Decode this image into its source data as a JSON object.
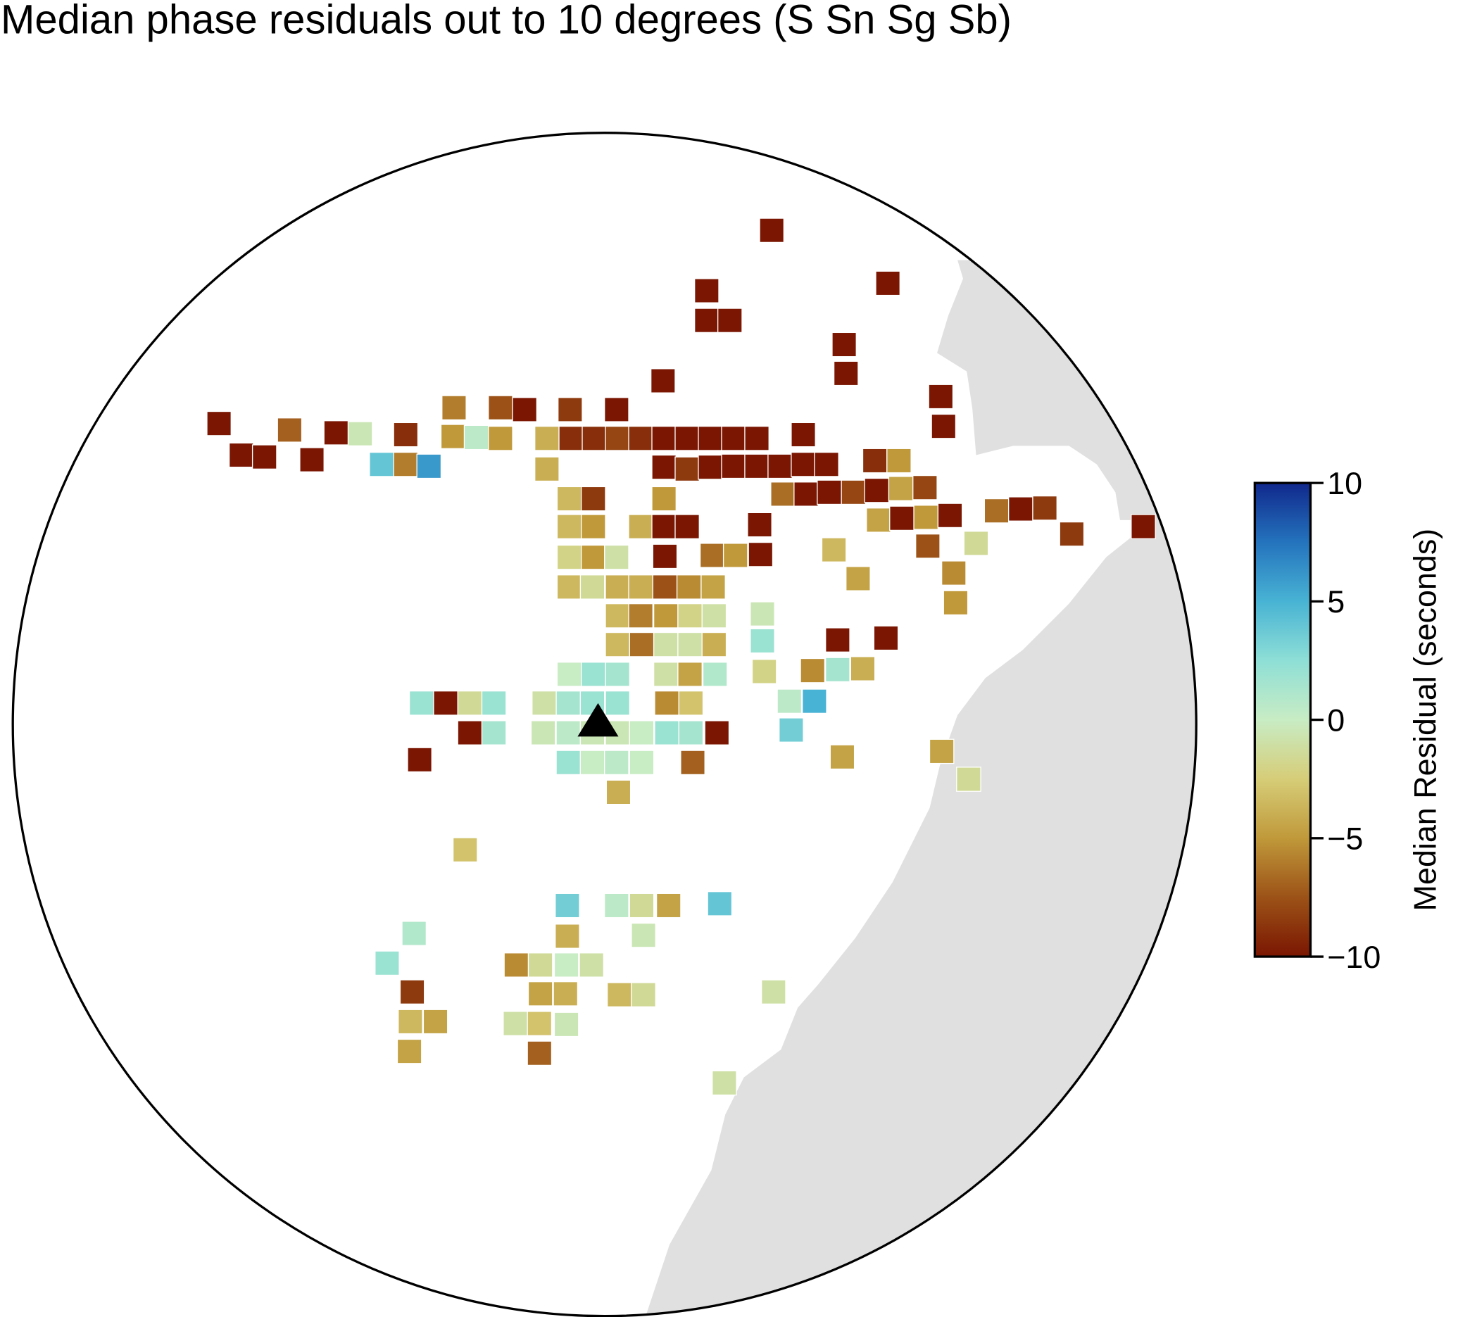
{
  "chart_data": {
    "type": "map",
    "title": "Median phase residuals out to 10 degrees (S Sn Sg Sb)",
    "colorbar_label": "Median Residual (seconds)",
    "ylim": [
      -10,
      10
    ],
    "yticks": [
      {
        "value": -10,
        "label": "−10"
      },
      {
        "value": -5,
        "label": "−5"
      },
      0,
      5,
      10
    ],
    "colormap": [
      "#7a1602",
      "#9c5217",
      "#c0993a",
      "#d6cd78",
      "#c8ecc4",
      "#8edfd6",
      "#48b3d4",
      "#2473bd",
      "#10288c"
    ],
    "land_color": "#e0e0e0",
    "values": [
      -10,
      -10,
      -10,
      -10,
      -10,
      -10,
      -10,
      -10,
      -10,
      -10,
      -10,
      -7,
      -10,
      -0.5,
      -9,
      -6,
      -7.5,
      -10,
      -8.5,
      -10,
      -5,
      0.5,
      -5,
      -4,
      -9,
      -9,
      -8,
      -9,
      -10,
      -10,
      -10,
      -10,
      -10,
      -10,
      -10,
      -10,
      -10,
      4,
      -6,
      6,
      -4,
      -10,
      -8.5,
      -10,
      -10,
      -10,
      -10,
      -10,
      -10,
      -9,
      -5,
      -3.5,
      -8.5,
      -5,
      -6.5,
      -10,
      -10,
      -8,
      -10,
      -4.5,
      -8,
      -3.5,
      -5,
      -4,
      -10,
      -10,
      -10,
      -4.5,
      -10,
      -5,
      -10,
      -6.5,
      -10,
      -8.5,
      -8.5,
      -10,
      -2,
      -5,
      -1,
      -10,
      -6.5,
      -5,
      -10,
      -3.5,
      -7.5,
      -1.5,
      -3.5,
      -1.5,
      -4,
      -4,
      -7.5,
      -5.5,
      -4.5,
      -4.5,
      -5.5,
      -3.5,
      -6,
      -5,
      -2,
      -1,
      -0.5,
      -5,
      -3.5,
      -6.5,
      -1,
      -1,
      -4,
      2,
      -10,
      -10,
      0,
      2,
      1.5,
      -1,
      -4.5,
      1,
      -2,
      -5.5,
      1.5,
      -4,
      2,
      -10,
      -1.5,
      2,
      -1,
      1.5,
      2,
      2,
      -5.5,
      -3,
      0.5,
      5,
      -10,
      1.5,
      -0.5,
      0.5,
      -0.5,
      -0.5,
      0,
      2,
      1.5,
      -10,
      3.5,
      -10,
      2,
      0,
      0.5,
      0,
      -7,
      -4.5,
      -4.5,
      -1.5,
      -4,
      -3,
      3.5,
      0.5,
      -1.5,
      -4.5,
      4,
      -4,
      -0.5,
      1,
      2,
      -5.5,
      -1.5,
      0,
      -1,
      -8.5,
      -4.5,
      -4,
      -3.5,
      -1.5,
      -1,
      -3.5,
      -4.5,
      -1,
      -3,
      -0.5,
      -4.5,
      -7,
      -1
    ]
  }
}
